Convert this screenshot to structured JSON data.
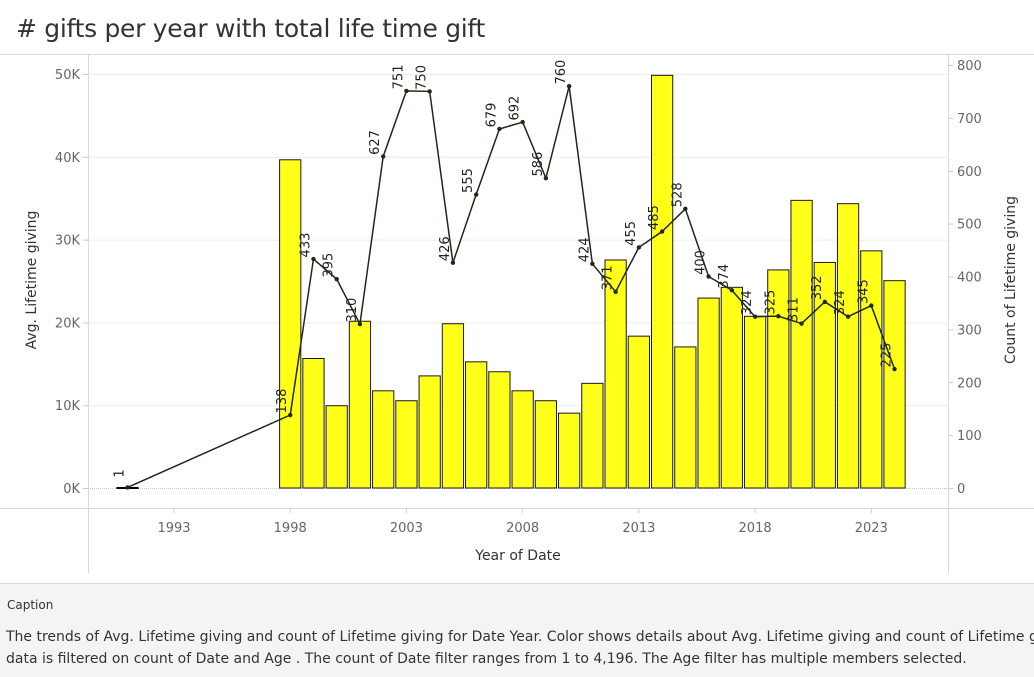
{
  "title": "# gifts per year with total life time gift",
  "caption": {
    "label": "Caption",
    "lines": [
      "The trends of Avg. Lifetime giving and count of Lifetime giving for Date Year.  Color shows details about Avg. Lifetime giving and count of Lifetime g",
      "data is filtered on count of Date and Age . The count of Date filter ranges from 1 to 4,196. The Age  filter has multiple members selected."
    ]
  },
  "chart_data": {
    "type": "bar",
    "title": "# gifts per year with total life time gift",
    "xlabel": "Year of Date",
    "ylabel_left": "Avg. Lifetime giving",
    "ylabel_right": "Count of Lifetime giving",
    "x_ticks": [
      "1993",
      "1998",
      "2003",
      "2008",
      "2013",
      "2018",
      "2023"
    ],
    "x_tick_values": [
      1993,
      1998,
      2003,
      2008,
      2013,
      2018,
      2023
    ],
    "xlim": [
      1989.3,
      2026.3
    ],
    "y_left_ticks": [
      "0K",
      "10K",
      "20K",
      "30K",
      "40K",
      "50K"
    ],
    "y_left_tick_values": [
      0,
      10000,
      20000,
      30000,
      40000,
      50000
    ],
    "ylim_left": [
      0,
      50000
    ],
    "y_right_ticks": [
      "0",
      "100",
      "200",
      "300",
      "400",
      "500",
      "600",
      "700",
      "800"
    ],
    "y_right_tick_values": [
      0,
      100,
      200,
      300,
      400,
      500,
      600,
      700,
      800
    ],
    "ylim_right": [
      0,
      800
    ],
    "bar_color": "#ffff1a",
    "line_color": "#1e2a14",
    "grid": true,
    "series": [
      {
        "name": "Avg. Lifetime giving",
        "type": "bar",
        "axis": "left",
        "x": [
          1991,
          1998,
          1999,
          2000,
          2001,
          2002,
          2003,
          2004,
          2005,
          2006,
          2007,
          2008,
          2009,
          2010,
          2011,
          2012,
          2013,
          2014,
          2015,
          2016,
          2017,
          2018,
          2019,
          2020,
          2021,
          2022,
          2023,
          2024
        ],
        "values": [
          100,
          39700,
          15700,
          10000,
          20200,
          11800,
          10600,
          13600,
          19900,
          15300,
          14100,
          11800,
          10600,
          9100,
          12700,
          27600,
          18400,
          49900,
          17100,
          23000,
          24300,
          20800,
          26400,
          34800,
          27300,
          34400,
          28700,
          25100
        ]
      },
      {
        "name": "Count of Lifetime giving",
        "type": "line",
        "axis": "right",
        "x": [
          1991,
          1998,
          1999,
          2000,
          2001,
          2002,
          2003,
          2004,
          2005,
          2006,
          2007,
          2008,
          2009,
          2010,
          2011,
          2012,
          2013,
          2014,
          2015,
          2016,
          2017,
          2018,
          2019,
          2020,
          2021,
          2022,
          2023,
          2024
        ],
        "values": [
          1,
          138,
          433,
          395,
          310,
          627,
          751,
          750,
          426,
          555,
          679,
          692,
          586,
          760,
          424,
          371,
          455,
          485,
          528,
          400,
          374,
          324,
          325,
          311,
          352,
          324,
          345,
          225
        ],
        "labels": [
          "1",
          "138",
          "433",
          "395",
          "310",
          "627",
          "751",
          "750",
          "426",
          "555",
          "679",
          "692",
          "586",
          "760",
          "424",
          "371",
          "455",
          "485",
          "528",
          "400",
          "374",
          "324",
          "325",
          "311",
          "352",
          "324",
          "345",
          "225"
        ]
      }
    ]
  }
}
